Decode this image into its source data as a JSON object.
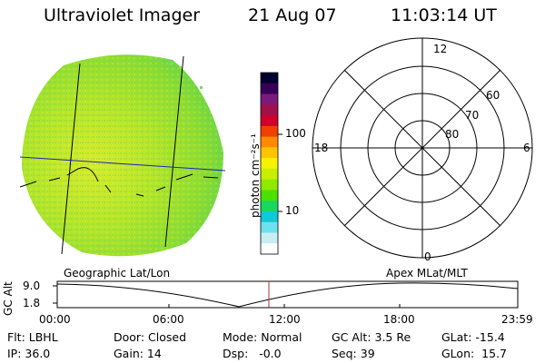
{
  "header": {
    "instrument": "Ultraviolet Imager",
    "date": "21 Aug 07",
    "time": "11:03:14 UT"
  },
  "image_panel": {
    "label": "Geographic Lat/Lon"
  },
  "colorbar": {
    "unit_label": "photon cm⁻²s⁻¹",
    "ticks": [
      "100",
      "10"
    ],
    "colors": [
      "#000030",
      "#380058",
      "#7a1a7a",
      "#a0104a",
      "#d0002a",
      "#f04000",
      "#ff8a00",
      "#ffc400",
      "#f6f200",
      "#c8ee00",
      "#8ee800",
      "#4ce000",
      "#18d860",
      "#10c8d8",
      "#70e0ee",
      "#c8eef4",
      "#ffffff"
    ]
  },
  "polar_panel": {
    "label": "Apex MLat/MLT",
    "mlt_labels": [
      "12",
      "18",
      "6",
      "0"
    ],
    "mlat_labels": [
      "60",
      "70",
      "80"
    ]
  },
  "altitude_plot": {
    "ylabel": "GC Alt",
    "y_ticks": [
      "9.0",
      "1.8"
    ],
    "x_ticks": [
      "00:00",
      "06:00",
      "12:00",
      "18:00",
      "23:59"
    ],
    "marker_time": "11:03:14",
    "accent_color": "#b03030"
  },
  "footer": {
    "filter": "Flt: LBHL",
    "ip": "IP: 36.0",
    "door": "Door: Closed",
    "gain": "Gain: 14",
    "mode": "Mode: Normal",
    "dsp": "Dsp:   -0.0",
    "gc_alt": "GC Alt: 3.5 Re",
    "seq": "Seq: 39",
    "glat": "GLat: -15.4",
    "glon": "GLon:  15.7"
  }
}
